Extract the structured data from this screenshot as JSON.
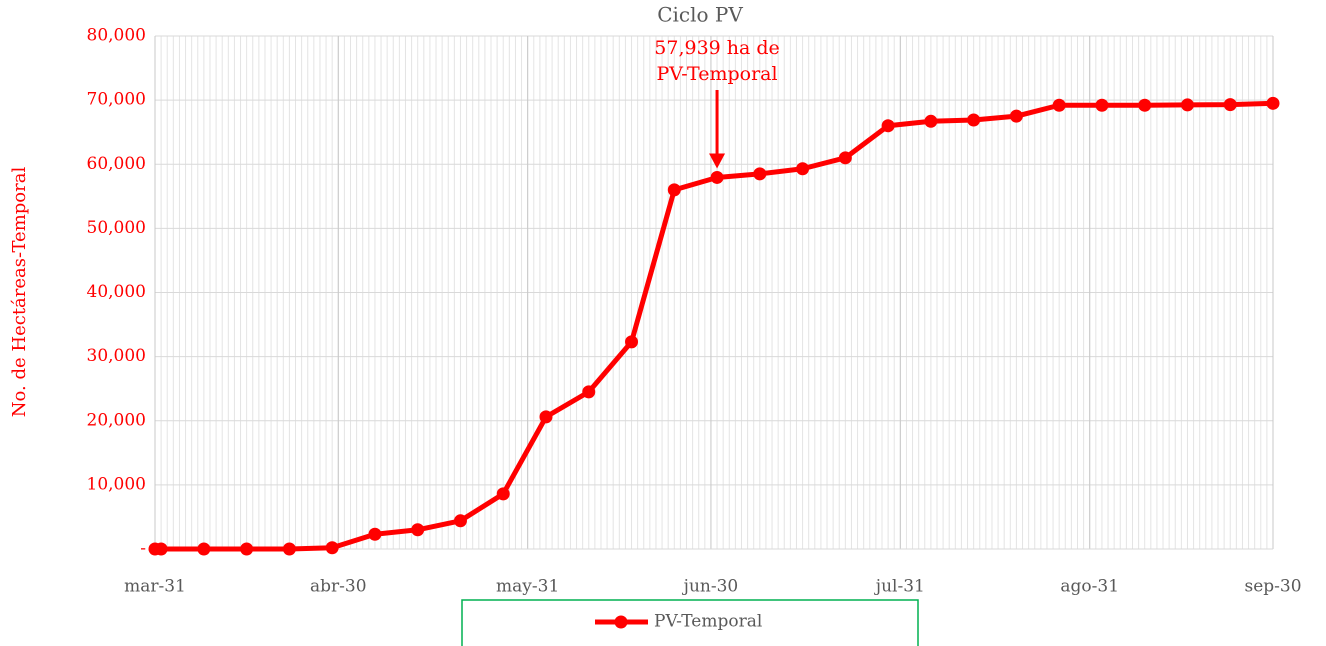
{
  "chart_data": {
    "type": "line",
    "title": "Ciclo PV",
    "y_label": "No. de Hectáreas-Temporal",
    "x": [
      "03-31",
      "04-01",
      "04-08",
      "04-15",
      "04-22",
      "04-29",
      "05-06",
      "05-13",
      "05-20",
      "05-27",
      "06-03",
      "06-10",
      "06-17",
      "06-24",
      "07-01",
      "07-08",
      "07-15",
      "07-22",
      "07-29",
      "08-05",
      "08-12",
      "08-19",
      "08-26",
      "09-02",
      "09-09",
      "09-16",
      "09-23",
      "09-30"
    ],
    "series": [
      {
        "name": "PV-Temporal",
        "color": "#ff0000",
        "values": [
          0,
          0,
          0,
          0,
          0,
          200,
          2300,
          3000,
          4400,
          8600,
          20600,
          24500,
          32300,
          56000,
          57939,
          58500,
          59300,
          61000,
          66000,
          66700,
          66900,
          67500,
          69200,
          69200,
          69200,
          69250,
          69300,
          69500
        ]
      }
    ],
    "xlim": [
      "03-31",
      "09-30"
    ],
    "xticks": [
      {
        "value": "03-31",
        "label": "mar-31"
      },
      {
        "value": "04-30",
        "label": "abr-30"
      },
      {
        "value": "05-31",
        "label": "may-31"
      },
      {
        "value": "06-30",
        "label": "jun-30"
      },
      {
        "value": "07-31",
        "label": "jul-31"
      },
      {
        "value": "08-31",
        "label": "ago-31"
      },
      {
        "value": "09-30",
        "label": "sep-30"
      }
    ],
    "ylim": [
      0,
      80000
    ],
    "yticks": [
      {
        "value": 0,
        "label": "-"
      },
      {
        "value": 10000,
        "label": "10,000"
      },
      {
        "value": 20000,
        "label": "20,000"
      },
      {
        "value": 30000,
        "label": "30,000"
      },
      {
        "value": 40000,
        "label": "40,000"
      },
      {
        "value": 50000,
        "label": "50,000"
      },
      {
        "value": 60000,
        "label": "60,000"
      },
      {
        "value": 70000,
        "label": "70,000"
      },
      {
        "value": 80000,
        "label": "80,000"
      }
    ],
    "grid": true,
    "minor_grid": "daily",
    "legend": "bottom",
    "annotations": [
      {
        "text": [
          "57,939 ha de",
          "PV-Temporal"
        ],
        "x": "07-01",
        "y": 57939,
        "color": "#ff0000"
      }
    ]
  }
}
